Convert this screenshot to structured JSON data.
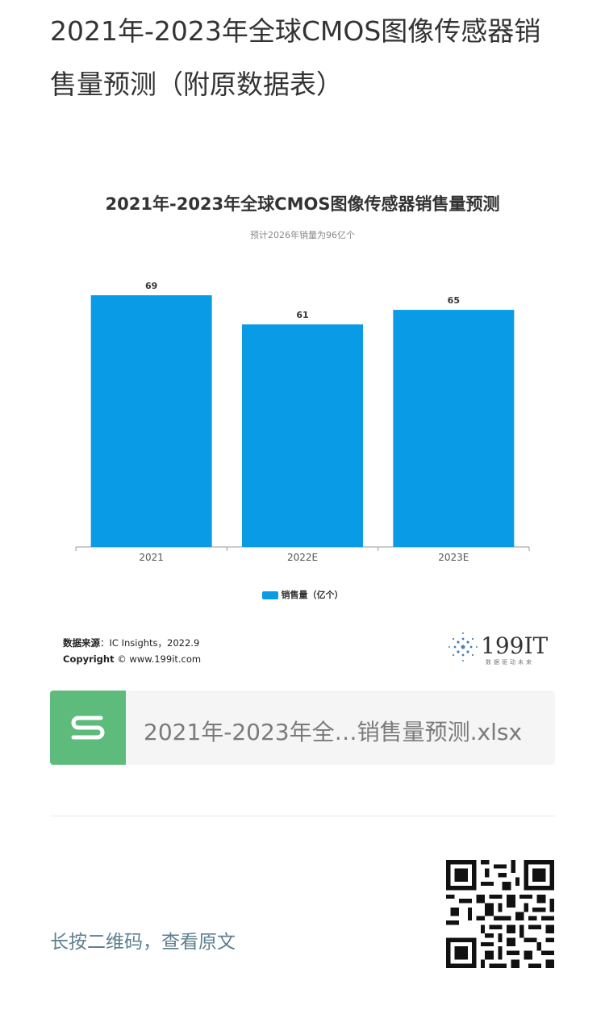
{
  "article": {
    "title": "2021年-2023年全球CMOS图像传感器销售量预测（附原数据表）"
  },
  "chart_data": {
    "type": "bar",
    "title": "2021年-2023年全球CMOS图像传感器销售量预测",
    "subtitle": "预计2026年销量为96亿个",
    "categories": [
      "2021",
      "2022E",
      "2023E"
    ],
    "series": [
      {
        "name": "销售量（亿个）",
        "values": [
          69,
          61,
          65
        ],
        "color": "#0a9be6"
      }
    ],
    "ylim": [
      0,
      69
    ],
    "grid": false,
    "legend_position": "bottom"
  },
  "source": {
    "label": "数据来源",
    "text": "：IC Insights，2022.9",
    "copyright_label": "Copyright",
    "copyright_text": "© www.199it.com"
  },
  "brand": {
    "name": "199IT",
    "tagline": "数据驱动未来"
  },
  "file": {
    "name": "2021年-2023年全…销售量预测.xlsx",
    "icon": "spreadsheet-s-icon"
  },
  "footer": {
    "qr_hint": "长按二维码，查看原文",
    "qr_icon": "qr-code-icon"
  }
}
